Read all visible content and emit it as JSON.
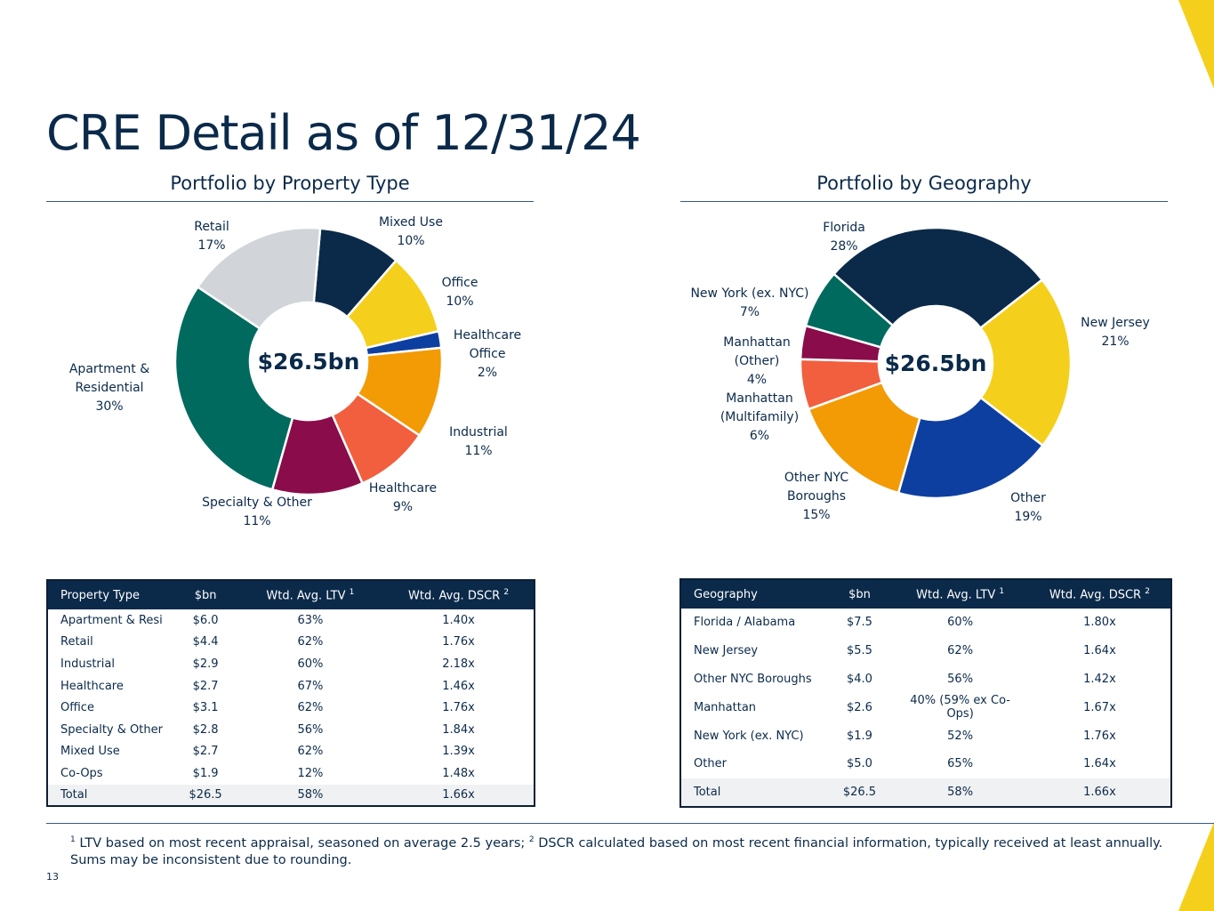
{
  "page": {
    "title": "CRE Detail as of 12/31/24",
    "page_number": "13",
    "accent_color": "#f4d01c"
  },
  "footnote": {
    "sup1": "1",
    "text1": "LTV based on most recent appraisal, seasoned on average 2.5 years; ",
    "sup2": "2",
    "text2": "DSCR calculated based on most recent financial information, typically received at least annually.",
    "line2": "Sums may be inconsistent due to rounding."
  },
  "chart_data": [
    {
      "type": "pie",
      "title": "Portfolio by Property Type",
      "center_label": "$26.5bn",
      "start_angle_deg": 5,
      "categories": [
        "Mixed Use",
        "Office",
        "Healthcare Office",
        "Industrial",
        "Healthcare",
        "Specialty & Other",
        "Apartment & Residential",
        "Retail"
      ],
      "values": [
        10,
        10,
        2,
        11,
        9,
        11,
        30,
        17
      ],
      "colors": [
        "#0b2a4a",
        "#f4d01c",
        "#0d3fa0",
        "#f29b05",
        "#f15f3e",
        "#8a0c4b",
        "#006a5f",
        "#d1d4d9"
      ],
      "labels": [
        {
          "lines": [
            "Mixed Use",
            "10%"
          ]
        },
        {
          "lines": [
            "Office",
            "10%"
          ]
        },
        {
          "lines": [
            "Healthcare",
            "Office",
            "2%"
          ]
        },
        {
          "lines": [
            "Industrial",
            "11%"
          ]
        },
        {
          "lines": [
            "Healthcare",
            "9%"
          ]
        },
        {
          "lines": [
            "Specialty & Other",
            "11%"
          ]
        },
        {
          "lines": [
            "Apartment &",
            "Residential",
            "30%"
          ]
        },
        {
          "lines": [
            "Retail",
            "17%"
          ]
        }
      ]
    },
    {
      "type": "pie",
      "title": "Portfolio by Geography",
      "center_label": "$26.5bn",
      "start_angle_deg": 52,
      "categories": [
        "New Jersey",
        "Other",
        "Other NYC Boroughs",
        "Manhattan (Multifamily)",
        "Manhattan (Other)",
        "New York (ex. NYC)",
        "Florida"
      ],
      "values": [
        21,
        19,
        15,
        6,
        4,
        7,
        28
      ],
      "colors": [
        "#f4d01c",
        "#0d3fa0",
        "#f29b05",
        "#f15f3e",
        "#8a0c4b",
        "#006a5f",
        "#0b2a4a"
      ],
      "labels": [
        {
          "lines": [
            "New Jersey",
            "21%"
          ]
        },
        {
          "lines": [
            "Other",
            "19%"
          ]
        },
        {
          "lines": [
            "Other NYC",
            "Boroughs",
            "15%"
          ]
        },
        {
          "lines": [
            "Manhattan",
            "(Multifamily)",
            "6%"
          ]
        },
        {
          "lines": [
            "Manhattan",
            "(Other)",
            "4%"
          ]
        },
        {
          "lines": [
            "New York (ex. NYC)",
            "7%"
          ]
        },
        {
          "lines": [
            "Florida",
            "28%"
          ]
        }
      ]
    }
  ],
  "property_table": {
    "headers": [
      "Property Type",
      "$bn",
      "Wtd. Avg. LTV",
      "Wtd. Avg. DSCR"
    ],
    "header_sups": [
      "",
      "",
      "1",
      "2"
    ],
    "rows": [
      [
        "Apartment & Resi",
        "$6.0",
        "63%",
        "1.40x"
      ],
      [
        "Retail",
        "$4.4",
        "62%",
        "1.76x"
      ],
      [
        "Industrial",
        "$2.9",
        "60%",
        "2.18x"
      ],
      [
        "Healthcare",
        "$2.7",
        "67%",
        "1.46x"
      ],
      [
        "Office",
        "$3.1",
        "62%",
        "1.76x"
      ],
      [
        "Specialty & Other",
        "$2.8",
        "56%",
        "1.84x"
      ],
      [
        "Mixed Use",
        "$2.7",
        "62%",
        "1.39x"
      ],
      [
        "Co-Ops",
        "$1.9",
        "12%",
        "1.48x"
      ]
    ],
    "total": [
      "Total",
      "$26.5",
      "58%",
      "1.66x"
    ]
  },
  "geography_table": {
    "headers": [
      "Geography",
      "$bn",
      "Wtd. Avg. LTV",
      "Wtd. Avg. DSCR"
    ],
    "header_sups": [
      "",
      "",
      "1",
      "2"
    ],
    "rows": [
      [
        "Florida / Alabama",
        "$7.5",
        "60%",
        "1.80x"
      ],
      [
        "New Jersey",
        "$5.5",
        "62%",
        "1.64x"
      ],
      [
        "Other NYC Boroughs",
        "$4.0",
        "56%",
        "1.42x"
      ],
      [
        "Manhattan",
        "$2.6",
        "40% (59% ex Co-Ops)",
        "1.67x"
      ],
      [
        "New York (ex. NYC)",
        "$1.9",
        "52%",
        "1.76x"
      ],
      [
        "Other",
        "$5.0",
        "65%",
        "1.64x"
      ]
    ],
    "total": [
      "Total",
      "$26.5",
      "58%",
      "1.66x"
    ]
  }
}
